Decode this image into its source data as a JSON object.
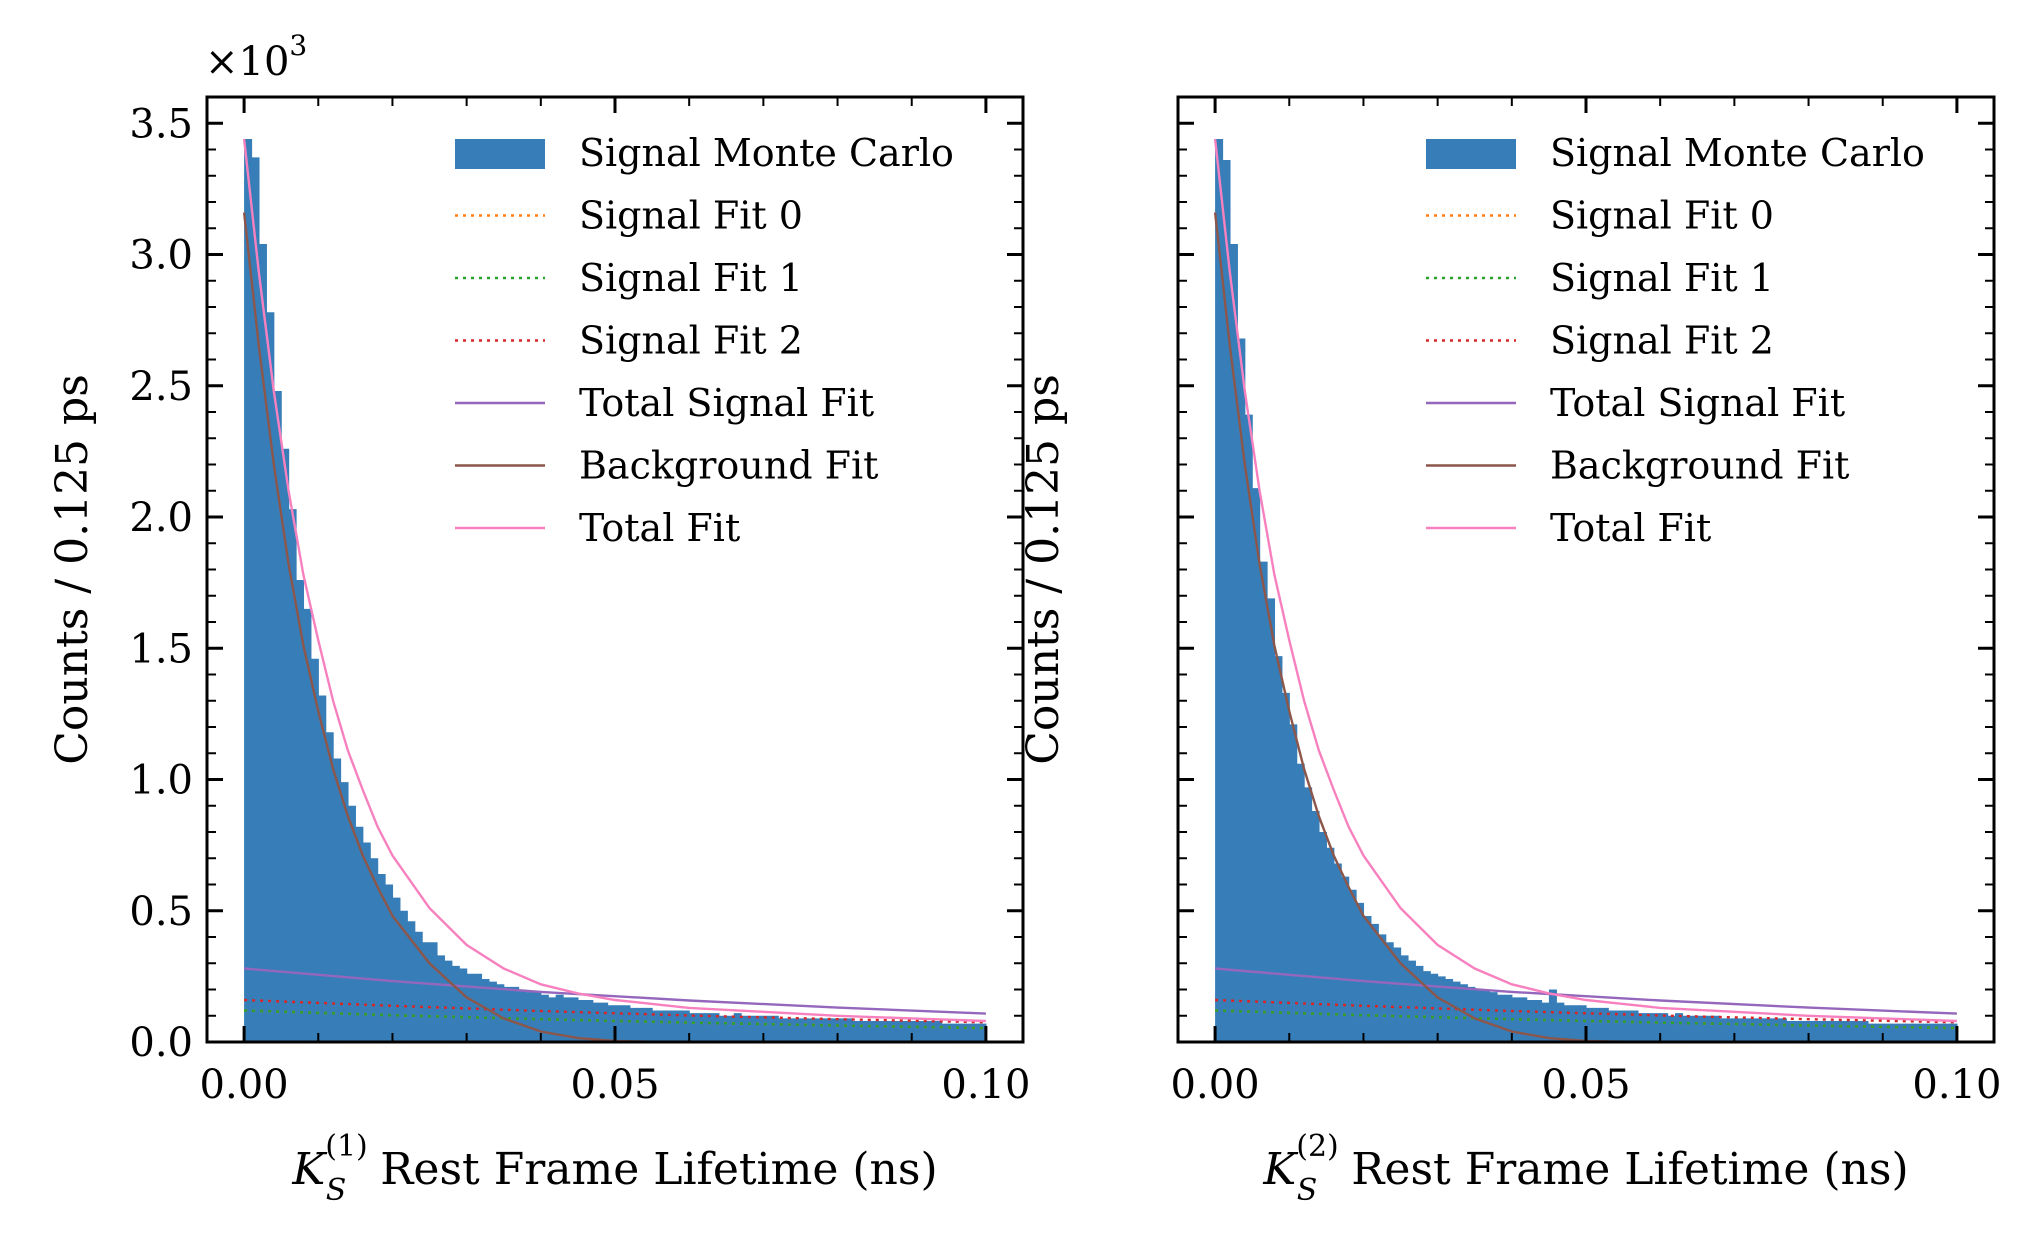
{
  "chart_data": [
    {
      "type": "bar",
      "xlabel": "K_S^(1) Rest Frame Lifetime (ns)",
      "xlabel_parts": {
        "symbol": "K",
        "subscript": "S",
        "superscript": "(1)",
        "rest": " Rest Frame Lifetime (ns)"
      },
      "ylabel": "Counts / 0.125 ps",
      "y_multiplier": "×10",
      "y_multiplier_exp": "3",
      "xlim": [
        -0.005,
        0.105
      ],
      "ylim": [
        0,
        3.6
      ],
      "xticks": [
        0.0,
        0.05,
        0.1
      ],
      "xtick_labels": [
        "0.00",
        "0.05",
        "0.10"
      ],
      "yticks": [
        0.0,
        0.5,
        1.0,
        1.5,
        2.0,
        2.5,
        3.0,
        3.5
      ],
      "ytick_labels": [
        "0.0",
        "0.5",
        "1.0",
        "1.5",
        "2.0",
        "2.5",
        "3.0",
        "3.5"
      ],
      "show_ytick_labels": true,
      "legend_position": "top-right",
      "legend": [
        "Signal Monte Carlo",
        "Signal Fit 0",
        "Signal Fit 1",
        "Signal Fit 2",
        "Total Signal Fit",
        "Background Fit",
        "Total Fit"
      ],
      "histogram": {
        "name": "Signal Monte Carlo",
        "bin_start": 0.0,
        "bin_width": 0.001,
        "values": [
          3.44,
          3.37,
          3.04,
          2.78,
          2.48,
          2.26,
          2.03,
          1.76,
          1.65,
          1.46,
          1.32,
          1.18,
          1.08,
          0.99,
          0.9,
          0.82,
          0.76,
          0.7,
          0.64,
          0.6,
          0.55,
          0.5,
          0.46,
          0.42,
          0.38,
          0.38,
          0.33,
          0.31,
          0.29,
          0.28,
          0.26,
          0.26,
          0.24,
          0.23,
          0.22,
          0.21,
          0.21,
          0.2,
          0.19,
          0.19,
          0.18,
          0.17,
          0.18,
          0.17,
          0.17,
          0.16,
          0.16,
          0.15,
          0.15,
          0.14,
          0.14,
          0.14,
          0.13,
          0.13,
          0.13,
          0.12,
          0.12,
          0.12,
          0.12,
          0.12,
          0.11,
          0.11,
          0.11,
          0.11,
          0.1,
          0.1,
          0.11,
          0.1,
          0.1,
          0.1,
          0.1,
          0.1,
          0.09,
          0.09,
          0.09,
          0.09,
          0.09,
          0.09,
          0.09,
          0.09,
          0.09,
          0.09,
          0.08,
          0.08,
          0.08,
          0.08,
          0.08,
          0.08,
          0.08,
          0.08,
          0.08,
          0.08,
          0.08,
          0.08,
          0.07,
          0.07,
          0.07,
          0.07,
          0.07,
          0.07
        ]
      },
      "curves": [
        {
          "name": "Signal Fit 0",
          "style": "dotted",
          "color": "#ff7f0e",
          "x": [
            0.0,
            0.02,
            0.04,
            0.06,
            0.08,
            0.1
          ],
          "y": [
            0.12,
            0.102,
            0.087,
            0.074,
            0.063,
            0.053
          ]
        },
        {
          "name": "Signal Fit 1",
          "style": "dotted",
          "color": "#2ca02c",
          "x": [
            0.0,
            0.02,
            0.04,
            0.06,
            0.08,
            0.1
          ],
          "y": [
            0.12,
            0.102,
            0.087,
            0.074,
            0.063,
            0.053
          ]
        },
        {
          "name": "Signal Fit 2",
          "style": "dotted",
          "color": "#d62728",
          "x": [
            0.0,
            0.02,
            0.04,
            0.06,
            0.08,
            0.1
          ],
          "y": [
            0.16,
            0.138,
            0.118,
            0.101,
            0.087,
            0.075
          ]
        },
        {
          "name": "Total Signal Fit",
          "style": "solid",
          "color": "#9467bd",
          "x": [
            0.0,
            0.02,
            0.04,
            0.06,
            0.08,
            0.1
          ],
          "y": [
            0.28,
            0.232,
            0.191,
            0.158,
            0.131,
            0.108
          ]
        },
        {
          "name": "Background Fit",
          "style": "solid",
          "color": "#8c564b",
          "x": [
            0.0,
            0.002,
            0.004,
            0.006,
            0.008,
            0.01,
            0.012,
            0.014,
            0.016,
            0.018,
            0.02,
            0.025,
            0.03,
            0.035,
            0.04,
            0.045,
            0.05,
            0.055,
            0.06
          ],
          "y": [
            3.16,
            2.65,
            2.2,
            1.82,
            1.51,
            1.26,
            1.04,
            0.86,
            0.71,
            0.59,
            0.48,
            0.3,
            0.17,
            0.09,
            0.04,
            0.015,
            0.004,
            0.001,
            0.0
          ]
        },
        {
          "name": "Total Fit",
          "style": "solid",
          "color": "#f781bf",
          "x": [
            0.0,
            0.002,
            0.004,
            0.006,
            0.008,
            0.01,
            0.012,
            0.014,
            0.016,
            0.018,
            0.02,
            0.025,
            0.03,
            0.035,
            0.04,
            0.045,
            0.05,
            0.055,
            0.06,
            0.07,
            0.08,
            0.09,
            0.1
          ],
          "y": [
            3.44,
            2.93,
            2.48,
            2.1,
            1.78,
            1.53,
            1.3,
            1.11,
            0.96,
            0.82,
            0.71,
            0.51,
            0.37,
            0.28,
            0.22,
            0.185,
            0.16,
            0.145,
            0.13,
            0.115,
            0.1,
            0.09,
            0.08
          ]
        }
      ]
    },
    {
      "type": "bar",
      "xlabel": "K_S^(2) Rest Frame Lifetime (ns)",
      "xlabel_parts": {
        "symbol": "K",
        "subscript": "S",
        "superscript": "(2)",
        "rest": " Rest Frame Lifetime (ns)"
      },
      "ylabel": "Counts / 0.125 ps",
      "xlim": [
        -0.005,
        0.105
      ],
      "ylim": [
        0,
        3.6
      ],
      "xticks": [
        0.0,
        0.05,
        0.1
      ],
      "xtick_labels": [
        "0.00",
        "0.05",
        "0.10"
      ],
      "yticks": [
        0.0,
        0.5,
        1.0,
        1.5,
        2.0,
        2.5,
        3.0,
        3.5
      ],
      "show_ytick_labels": false,
      "legend_position": "top-right",
      "legend": [
        "Signal Monte Carlo",
        "Signal Fit 0",
        "Signal Fit 1",
        "Signal Fit 2",
        "Total Signal Fit",
        "Background Fit",
        "Total Fit"
      ],
      "histogram": {
        "name": "Signal Monte Carlo",
        "bin_start": 0.0,
        "bin_width": 0.001,
        "values": [
          3.44,
          3.36,
          3.04,
          2.68,
          2.39,
          2.11,
          1.83,
          1.69,
          1.47,
          1.33,
          1.21,
          1.06,
          0.97,
          0.88,
          0.8,
          0.74,
          0.68,
          0.63,
          0.58,
          0.53,
          0.48,
          0.45,
          0.41,
          0.38,
          0.36,
          0.33,
          0.31,
          0.29,
          0.27,
          0.26,
          0.25,
          0.24,
          0.23,
          0.22,
          0.21,
          0.2,
          0.2,
          0.19,
          0.18,
          0.18,
          0.17,
          0.17,
          0.16,
          0.16,
          0.15,
          0.2,
          0.15,
          0.14,
          0.14,
          0.14,
          0.13,
          0.13,
          0.13,
          0.12,
          0.12,
          0.12,
          0.12,
          0.11,
          0.11,
          0.11,
          0.11,
          0.1,
          0.11,
          0.1,
          0.1,
          0.1,
          0.1,
          0.1,
          0.09,
          0.09,
          0.09,
          0.09,
          0.09,
          0.09,
          0.09,
          0.09,
          0.09,
          0.08,
          0.08,
          0.08,
          0.08,
          0.08,
          0.08,
          0.08,
          0.08,
          0.08,
          0.08,
          0.08,
          0.07,
          0.07,
          0.07,
          0.07,
          0.07,
          0.07,
          0.07,
          0.07,
          0.07,
          0.07,
          0.07,
          0.07
        ]
      },
      "curves": [
        {
          "name": "Signal Fit 0",
          "style": "dotted",
          "color": "#ff7f0e",
          "x": [
            0.0,
            0.02,
            0.04,
            0.06,
            0.08,
            0.1
          ],
          "y": [
            0.12,
            0.102,
            0.087,
            0.074,
            0.063,
            0.053
          ]
        },
        {
          "name": "Signal Fit 1",
          "style": "dotted",
          "color": "#2ca02c",
          "x": [
            0.0,
            0.02,
            0.04,
            0.06,
            0.08,
            0.1
          ],
          "y": [
            0.12,
            0.102,
            0.087,
            0.074,
            0.063,
            0.053
          ]
        },
        {
          "name": "Signal Fit 2",
          "style": "dotted",
          "color": "#d62728",
          "x": [
            0.0,
            0.02,
            0.04,
            0.06,
            0.08,
            0.1
          ],
          "y": [
            0.16,
            0.138,
            0.118,
            0.101,
            0.087,
            0.075
          ]
        },
        {
          "name": "Total Signal Fit",
          "style": "solid",
          "color": "#9467bd",
          "x": [
            0.0,
            0.02,
            0.04,
            0.06,
            0.08,
            0.1
          ],
          "y": [
            0.28,
            0.232,
            0.191,
            0.158,
            0.131,
            0.108
          ]
        },
        {
          "name": "Background Fit",
          "style": "solid",
          "color": "#8c564b",
          "x": [
            0.0,
            0.002,
            0.004,
            0.006,
            0.008,
            0.01,
            0.012,
            0.014,
            0.016,
            0.018,
            0.02,
            0.025,
            0.03,
            0.035,
            0.04,
            0.045,
            0.05,
            0.055,
            0.06
          ],
          "y": [
            3.16,
            2.65,
            2.2,
            1.82,
            1.51,
            1.26,
            1.04,
            0.86,
            0.71,
            0.59,
            0.48,
            0.3,
            0.17,
            0.09,
            0.04,
            0.015,
            0.004,
            0.001,
            0.0
          ]
        },
        {
          "name": "Total Fit",
          "style": "solid",
          "color": "#f781bf",
          "x": [
            0.0,
            0.002,
            0.004,
            0.006,
            0.008,
            0.01,
            0.012,
            0.014,
            0.016,
            0.018,
            0.02,
            0.025,
            0.03,
            0.035,
            0.04,
            0.045,
            0.05,
            0.055,
            0.06,
            0.07,
            0.08,
            0.09,
            0.1
          ],
          "y": [
            3.44,
            2.93,
            2.48,
            2.1,
            1.78,
            1.53,
            1.3,
            1.11,
            0.96,
            0.82,
            0.71,
            0.51,
            0.37,
            0.28,
            0.22,
            0.185,
            0.16,
            0.145,
            0.13,
            0.115,
            0.1,
            0.09,
            0.08
          ]
        }
      ]
    }
  ],
  "colors": {
    "histogram_fill": "#377eb8",
    "axis": "#000000",
    "background": "#ffffff"
  }
}
